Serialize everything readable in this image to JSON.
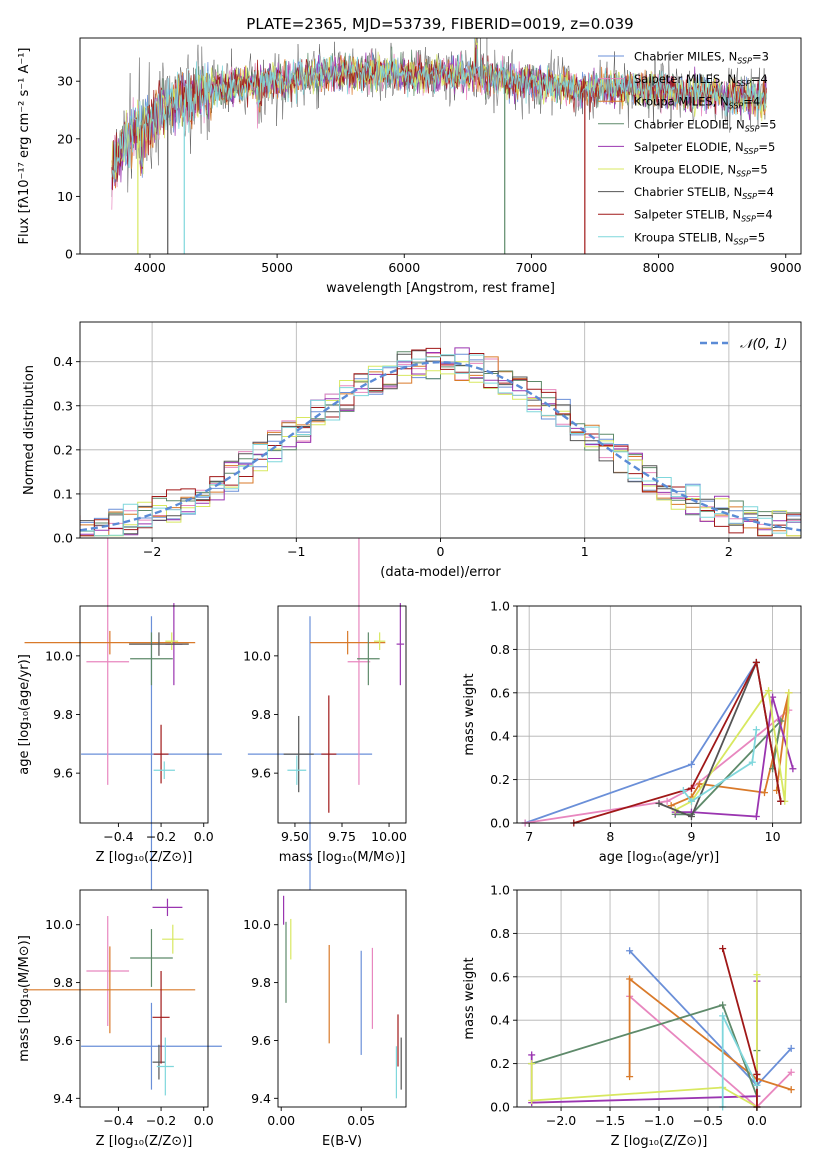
{
  "title": "PLATE=2365, MJD=53739, FIBERID=0019, z=0.039",
  "colors": {
    "Chabrier MILES": "#6a8fd8",
    "Salpeter MILES": "#e887bf",
    "Kroupa MILES": "#d97a2a",
    "Chabrier ELODIE": "#5e8a6a",
    "Salpeter ELODIE": "#9a35b0",
    "Kroupa ELODIE": "#d8e860",
    "Chabrier STELIB": "#555555",
    "Salpeter STELIB": "#a01818",
    "Kroupa STELIB": "#7fd7dc"
  },
  "chart_data": [
    {
      "id": "spectrum",
      "type": "line",
      "xlabel": "wavelength [Angstrom, rest frame]",
      "ylabel": "Flux [fλ10⁻¹⁷ erg cm⁻² s⁻¹ A⁻¹]",
      "xlim": [
        3450,
        9120
      ],
      "ylim": [
        0,
        37.5
      ],
      "xticks": [
        4000,
        5000,
        6000,
        7000,
        8000,
        9000
      ],
      "yticks": [
        0,
        10,
        20,
        30
      ],
      "legend_position": "top-right",
      "legend": [
        "Chabrier MILES, N_SSP=3",
        "Salpeter MILES, N_SSP=4",
        "Kroupa MILES, N_SSP=4",
        "Chabrier ELODIE, N_SSP=5",
        "Salpeter ELODIE, N_SSP=5",
        "Kroupa ELODIE, N_SSP=5",
        "Chabrier STELIB, N_SSP=4",
        "Salpeter STELIB, N_SSP=4",
        "Kroupa STELIB, N_SSP=5"
      ],
      "continuum": {
        "x": [
          3700,
          3800,
          3900,
          4000,
          4100,
          4200,
          4300,
          4500,
          4700,
          5000,
          5300,
          5600,
          5900,
          6200,
          6500,
          6800,
          7100,
          7400,
          7700,
          8000,
          8300,
          8600,
          8850
        ],
        "y": [
          14,
          19,
          22,
          23,
          25,
          26.5,
          27,
          28.5,
          29.5,
          30,
          31,
          31.5,
          31.5,
          31,
          31,
          30.5,
          29.5,
          28.5,
          29,
          28.5,
          28,
          27.5,
          27
        ]
      },
      "drops": [
        {
          "x": 3905,
          "y": 0,
          "series": 5
        },
        {
          "x": 4140,
          "y": 0,
          "series": 6
        },
        {
          "x": 4270,
          "y": 0,
          "series": 8
        },
        {
          "x": 6790,
          "y": 0,
          "series": 3
        },
        {
          "x": 7420,
          "y": 0,
          "series": 7
        }
      ]
    },
    {
      "id": "residuals",
      "type": "bar",
      "xlabel": "(data-model)/error",
      "ylabel": "Normed distribution",
      "xlim": [
        -2.5,
        2.5
      ],
      "ylim": [
        0,
        0.49
      ],
      "xticks": [
        -2,
        -1,
        0,
        1,
        2
      ],
      "yticks": [
        0.0,
        0.1,
        0.2,
        0.3,
        0.4
      ],
      "bin_width": 0.1,
      "reference_label": "𝒩(0, 1)",
      "legend_position": "top-right"
    },
    {
      "id": "age_vs_Z",
      "type": "scatter",
      "xlabel": "Z [log₁₀(Z/Z⊙)]",
      "ylabel": "age  [log₁₀(age/yr)]",
      "xlim": [
        -0.58,
        0.02
      ],
      "ylim": [
        9.43,
        10.17
      ],
      "xticks": [
        -0.4,
        -0.2,
        0.0
      ],
      "yticks": [
        9.6,
        9.8,
        10.0
      ],
      "points": [
        {
          "series": 0,
          "x": -0.245,
          "y": 9.665,
          "xerr": 0.33,
          "yerr": 0.47
        },
        {
          "series": 1,
          "x": -0.45,
          "y": 9.98,
          "xerr": 0.1,
          "yerr": 0.42
        },
        {
          "series": 2,
          "x": -0.44,
          "y": 10.045,
          "xerr": 0.4,
          "yerr": 0.04
        },
        {
          "series": 3,
          "x": -0.245,
          "y": 9.99,
          "xerr": 0.1,
          "yerr": 0.09
        },
        {
          "series": 4,
          "x": -0.14,
          "y": 10.04,
          "xerr": 0.04,
          "yerr": 0.14
        },
        {
          "series": 5,
          "x": -0.15,
          "y": 10.05,
          "xerr": 0.03,
          "yerr": 0.03
        },
        {
          "series": 6,
          "x": -0.21,
          "y": 10.04,
          "xerr": 0.14,
          "yerr": 0.04
        },
        {
          "series": 7,
          "x": -0.2,
          "y": 9.665,
          "xerr": 0.035,
          "yerr": 0.1
        },
        {
          "series": 8,
          "x": -0.185,
          "y": 9.61,
          "xerr": 0.05,
          "yerr": 0.03
        }
      ]
    },
    {
      "id": "age_vs_mass",
      "type": "scatter",
      "xlabel": "mass [log₁₀(M/M⊙)]",
      "ylabel": "",
      "xlim": [
        9.41,
        10.09
      ],
      "ylim": [
        9.43,
        10.17
      ],
      "xticks": [
        9.5,
        9.75,
        10.0
      ],
      "xticklabels": [
        "9.50",
        "9.75",
        "10.00"
      ],
      "yticks": [
        9.6,
        9.8,
        10.0
      ],
      "points": [
        {
          "series": 0,
          "x": 9.58,
          "y": 9.665,
          "xerr": 0.33,
          "yerr": 0.47
        },
        {
          "series": 1,
          "x": 9.84,
          "y": 9.98,
          "xerr": 0.06,
          "yerr": 0.42
        },
        {
          "series": 2,
          "x": 9.78,
          "y": 10.045,
          "xerr": 0.2,
          "yerr": 0.04
        },
        {
          "series": 3,
          "x": 9.89,
          "y": 9.99,
          "xerr": 0.06,
          "yerr": 0.09
        },
        {
          "series": 4,
          "x": 10.06,
          "y": 10.04,
          "xerr": 0.02,
          "yerr": 0.14
        },
        {
          "series": 5,
          "x": 9.95,
          "y": 10.05,
          "xerr": 0.03,
          "yerr": 0.03
        },
        {
          "series": 6,
          "x": 9.52,
          "y": 9.665,
          "xerr": 0.08,
          "yerr": 0.13
        },
        {
          "series": 7,
          "x": 9.68,
          "y": 9.665,
          "xerr": 0.04,
          "yerr": 0.2
        },
        {
          "series": 8,
          "x": 9.51,
          "y": 9.61,
          "xerr": 0.05,
          "yerr": 0.05
        }
      ]
    },
    {
      "id": "weight_vs_age",
      "type": "line",
      "xlabel": "age  [log₁₀(age/yr)]",
      "ylabel": "mass weight",
      "xlim": [
        6.85,
        10.35
      ],
      "ylim": [
        0,
        1
      ],
      "xticks": [
        7,
        8,
        9,
        10
      ],
      "yticks": [
        0.0,
        0.2,
        0.4,
        0.6,
        0.8,
        1.0
      ],
      "series": [
        {
          "x": [
            6.95,
            9.0,
            9.8
          ],
          "y": [
            0.0,
            0.27,
            0.74
          ]
        },
        {
          "x": [
            6.95,
            8.7,
            9.0,
            10.2
          ],
          "y": [
            0.0,
            0.1,
            0.16,
            0.52
          ]
        },
        {
          "x": [
            8.75,
            9.0,
            9.1,
            9.9,
            10.2,
            10.05
          ],
          "y": [
            0.08,
            0.12,
            0.18,
            0.14,
            0.6,
            0.15
          ]
        },
        {
          "x": [
            8.8,
            9.0,
            10.1,
            10.0
          ],
          "y": [
            0.04,
            0.04,
            0.47,
            0.25
          ]
        },
        {
          "x": [
            8.8,
            9.0,
            9.8,
            10.0,
            10.25
          ],
          "y": [
            0.05,
            0.05,
            0.03,
            0.58,
            0.25
          ]
        },
        {
          "x": [
            8.8,
            9.0,
            9.95,
            10.15,
            10.2
          ],
          "y": [
            0.06,
            0.1,
            0.61,
            0.1,
            0.6
          ]
        },
        {
          "x": [
            8.6,
            9.0,
            9.8,
            10.1
          ],
          "y": [
            0.09,
            0.03,
            0.74,
            0.1
          ]
        },
        {
          "x": [
            7.55,
            9.0,
            9.8,
            10.1
          ],
          "y": [
            0.0,
            0.16,
            0.74,
            0.1
          ]
        },
        {
          "x": [
            8.9,
            9.0,
            9.75,
            9.8
          ],
          "y": [
            0.15,
            0.1,
            0.28,
            0.43
          ]
        }
      ]
    },
    {
      "id": "mass_vs_Z",
      "type": "scatter",
      "xlabel": "Z [log₁₀(Z/Z⊙)]",
      "ylabel": "mass [log₁₀(M/M⊙)]",
      "xlim": [
        -0.58,
        0.02
      ],
      "ylim": [
        9.37,
        10.12
      ],
      "xticks": [
        -0.4,
        -0.2,
        0.0
      ],
      "yticks": [
        9.4,
        9.6,
        9.8,
        10.0
      ],
      "points": [
        {
          "series": 0,
          "x": -0.245,
          "y": 9.58,
          "xerr": 0.33,
          "yerr": 0.15
        },
        {
          "series": 1,
          "x": -0.45,
          "y": 9.84,
          "xerr": 0.1,
          "yerr": 0.19
        },
        {
          "series": 2,
          "x": -0.44,
          "y": 9.775,
          "xerr": 0.4,
          "yerr": 0.15
        },
        {
          "series": 3,
          "x": -0.245,
          "y": 9.885,
          "xerr": 0.1,
          "yerr": 0.1
        },
        {
          "series": 4,
          "x": -0.17,
          "y": 10.06,
          "xerr": 0.07,
          "yerr": 0.03
        },
        {
          "series": 5,
          "x": -0.145,
          "y": 9.95,
          "xerr": 0.05,
          "yerr": 0.05
        },
        {
          "series": 6,
          "x": -0.21,
          "y": 9.525,
          "xerr": 0.03,
          "yerr": 0.06
        },
        {
          "series": 7,
          "x": -0.2,
          "y": 9.68,
          "xerr": 0.04,
          "yerr": 0.16
        },
        {
          "series": 8,
          "x": -0.18,
          "y": 9.51,
          "xerr": 0.04,
          "yerr": 0.1
        }
      ]
    },
    {
      "id": "mass_vs_ebv",
      "type": "scatter",
      "xlabel": "E(B-V)",
      "ylabel": "",
      "xlim": [
        -0.002,
        0.078
      ],
      "ylim": [
        9.37,
        10.12
      ],
      "xticks": [
        0.0,
        0.05
      ],
      "xticklabels": [
        "0.00",
        "0.05"
      ],
      "yticks": [
        9.4,
        9.6,
        9.8,
        10.0
      ],
      "points": [
        {
          "series": 0,
          "x": 0.05,
          "y": 9.73,
          "xerr": 0,
          "yerr": 0.18
        },
        {
          "series": 1,
          "x": 0.057,
          "y": 9.78,
          "xerr": 0,
          "yerr": 0.14
        },
        {
          "series": 2,
          "x": 0.03,
          "y": 9.76,
          "xerr": 0,
          "yerr": 0.17
        },
        {
          "series": 3,
          "x": 0.003,
          "y": 9.87,
          "xerr": 0,
          "yerr": 0.14
        },
        {
          "series": 4,
          "x": 0.0015,
          "y": 10.05,
          "xerr": 0,
          "yerr": 0.05
        },
        {
          "series": 5,
          "x": 0.006,
          "y": 9.95,
          "xerr": 0,
          "yerr": 0.07
        },
        {
          "series": 6,
          "x": 0.075,
          "y": 9.52,
          "xerr": 0,
          "yerr": 0.09
        },
        {
          "series": 7,
          "x": 0.073,
          "y": 9.6,
          "xerr": 0,
          "yerr": 0.09
        },
        {
          "series": 8,
          "x": 0.072,
          "y": 9.49,
          "xerr": 0,
          "yerr": 0.09
        }
      ]
    },
    {
      "id": "weight_vs_Z",
      "type": "line",
      "xlabel": "Z [log₁₀(Z/Z⊙)]",
      "ylabel": "mass weight",
      "xlim": [
        -2.45,
        0.45
      ],
      "ylim": [
        0,
        1
      ],
      "xticks": [
        -2.0,
        -1.5,
        -1.0,
        -0.5,
        0.0
      ],
      "yticks": [
        0.0,
        0.2,
        0.4,
        0.6,
        0.8,
        1.0
      ],
      "series": [
        {
          "x": [
            -1.3,
            0.0,
            0.35
          ],
          "y": [
            0.72,
            0.1,
            0.27
          ]
        },
        {
          "x": [
            -1.3,
            0.0,
            0.35
          ],
          "y": [
            0.51,
            0.0,
            0.16
          ]
        },
        {
          "x": [
            -1.3,
            -1.3,
            0.0,
            0.35
          ],
          "y": [
            0.14,
            0.59,
            0.13,
            0.08
          ]
        },
        {
          "x": [
            -2.3,
            -0.35,
            0.0,
            0.0
          ],
          "y": [
            0.2,
            0.47,
            0.05,
            0.26
          ]
        },
        {
          "x": [
            -2.3,
            -2.3,
            0.0,
            0.0
          ],
          "y": [
            0.24,
            0.02,
            0.05,
            0.58
          ]
        },
        {
          "x": [
            -2.3,
            -2.3,
            -0.35,
            0.0,
            0.0
          ],
          "y": [
            0.2,
            0.03,
            0.09,
            0.0,
            0.61
          ]
        },
        {
          "x": [
            0.0,
            0.0
          ],
          "y": [
            0.0,
            0.15
          ]
        },
        {
          "x": [
            -0.35,
            0.0,
            0.0
          ],
          "y": [
            0.73,
            0.15,
            0.0
          ]
        },
        {
          "x": [
            -0.35,
            -0.35,
            0.0
          ],
          "y": [
            0.0,
            0.42,
            0.1
          ]
        }
      ]
    }
  ]
}
